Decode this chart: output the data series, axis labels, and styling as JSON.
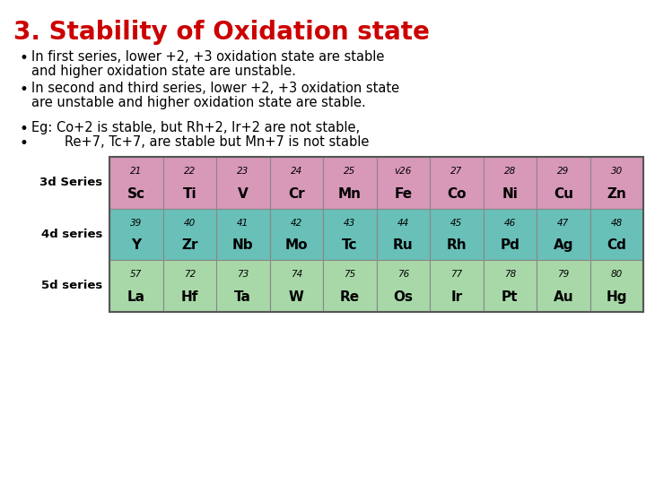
{
  "title": "3. Stability of Oxidation state",
  "title_color": "#cc0000",
  "background_color": "#ffffff",
  "bullet1_line1": "In first series, lower +2, +3 oxidation state are stable",
  "bullet1_line2": "and higher oxidation state are unstable.",
  "bullet2_line1": "In second and third series, lower +2, +3 oxidation state",
  "bullet2_line2": "are unstable and higher oxidation state are stable.",
  "bullet3": "Eg: Co+2 is stable, but Rh+2, Ir+2 are not stable,",
  "bullet4": "        Re+7, Tc+7, are stable but Mn+7 is not stable",
  "series_labels": [
    "3d Series",
    "4d series",
    "5d series"
  ],
  "cell_bg_3d": "#d898b8",
  "cell_bg_4d": "#68c0b8",
  "cell_bg_5d": "#a8d8a8",
  "table_data": [
    [
      [
        "21",
        "Sc"
      ],
      [
        "22",
        "Ti"
      ],
      [
        "23",
        "V"
      ],
      [
        "24",
        "Cr"
      ],
      [
        "25",
        "Mn"
      ],
      [
        "v26",
        "Fe"
      ],
      [
        "27",
        "Co"
      ],
      [
        "28",
        "Ni"
      ],
      [
        "29",
        "Cu"
      ],
      [
        "30",
        "Zn"
      ]
    ],
    [
      [
        "39",
        "Y"
      ],
      [
        "40",
        "Zr"
      ],
      [
        "41",
        "Nb"
      ],
      [
        "42",
        "Mo"
      ],
      [
        "43",
        "Tc"
      ],
      [
        "44",
        "Ru"
      ],
      [
        "45",
        "Rh"
      ],
      [
        "46",
        "Pd"
      ],
      [
        "47",
        "Ag"
      ],
      [
        "48",
        "Cd"
      ]
    ],
    [
      [
        "57",
        "La"
      ],
      [
        "72",
        "Hf"
      ],
      [
        "73",
        "Ta"
      ],
      [
        "74",
        "W"
      ],
      [
        "75",
        "Re"
      ],
      [
        "76",
        "Os"
      ],
      [
        "77",
        "Ir"
      ],
      [
        "78",
        "Pt"
      ],
      [
        "79",
        "Au"
      ],
      [
        "80",
        "Hg"
      ]
    ]
  ]
}
